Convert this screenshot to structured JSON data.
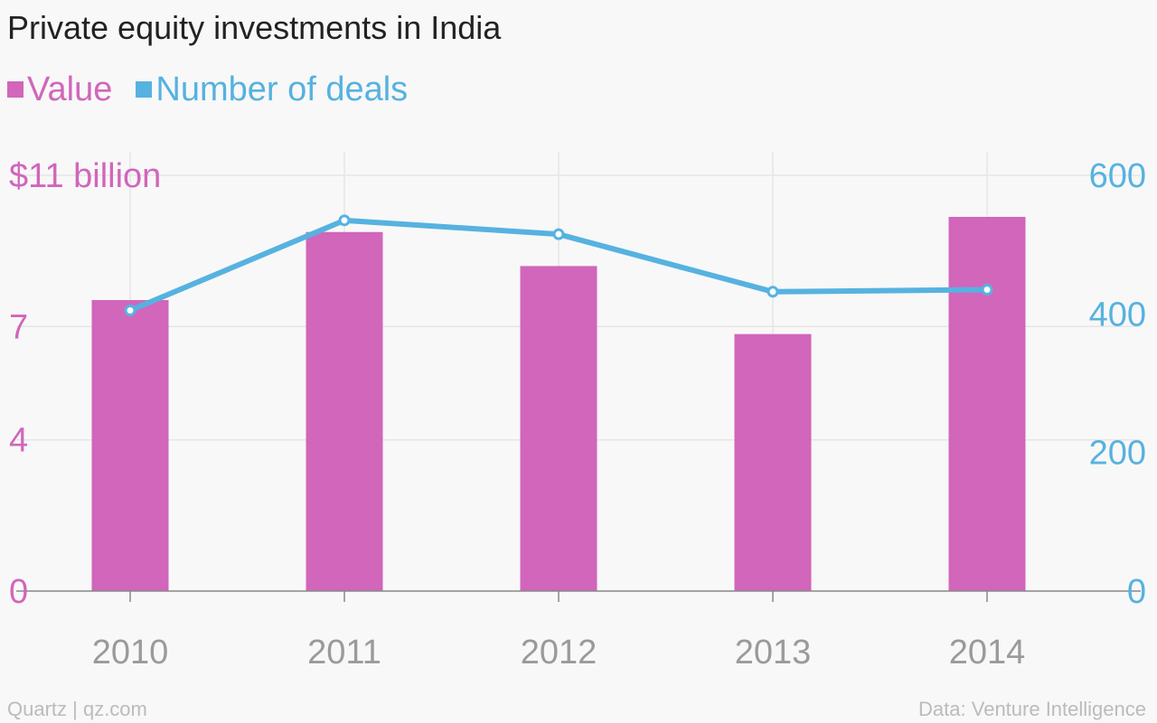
{
  "chart_data": {
    "type": "bar",
    "title": "Private equity investments in India",
    "categories": [
      "2010",
      "2011",
      "2012",
      "2013",
      "2014"
    ],
    "series": [
      {
        "name": "Value",
        "type": "bar",
        "axis": "left",
        "color": "#d166bb",
        "values": [
          7.7,
          9.5,
          8.6,
          6.8,
          9.9
        ]
      },
      {
        "name": "Number of deals",
        "type": "line",
        "axis": "right",
        "color": "#56b2e0",
        "values": [
          405,
          535,
          515,
          432,
          435
        ]
      }
    ],
    "y_left": {
      "ticks": [
        0,
        4,
        7,
        11
      ],
      "tick_labels": [
        "0",
        "4",
        "7",
        "$11 billion"
      ],
      "ylim": [
        0,
        11
      ],
      "color": "#d166bb"
    },
    "y_right": {
      "ticks": [
        0,
        200,
        400,
        600
      ],
      "tick_labels": [
        "0",
        "200",
        "400",
        "600"
      ],
      "ylim": [
        0,
        600
      ],
      "color": "#56b2e0"
    },
    "grid": true,
    "legend": "top-left",
    "xlabel": "",
    "ylabel": ""
  },
  "footer": {
    "source": "Quartz | qz.com",
    "data_credit": "Data: Venture Intelligence"
  }
}
